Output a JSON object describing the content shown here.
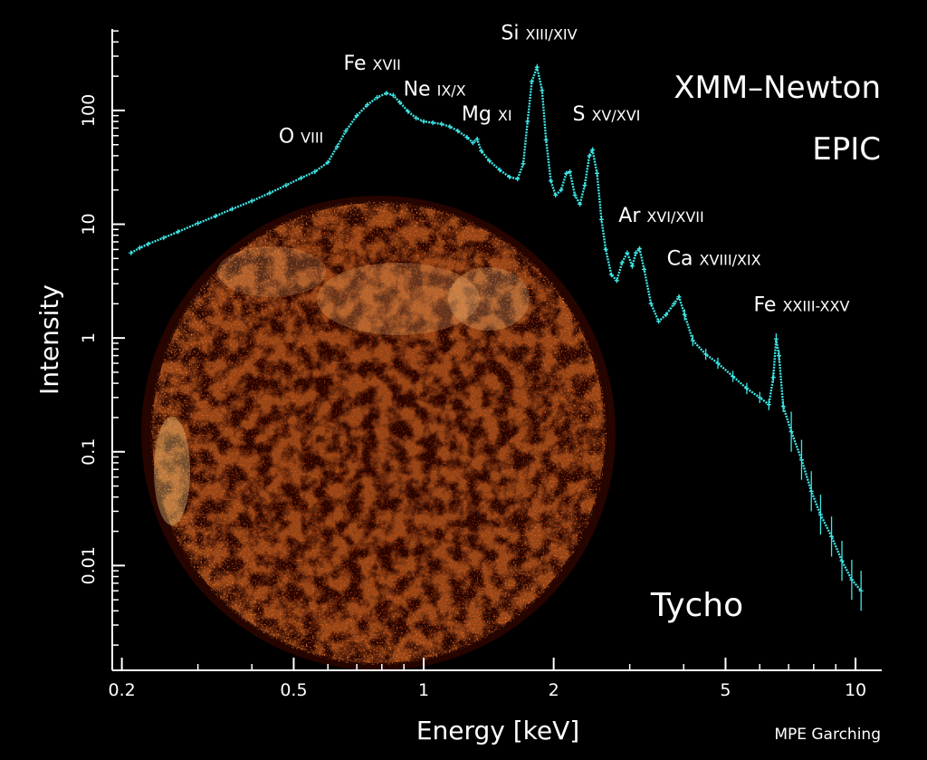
{
  "colors": {
    "background": "#000000",
    "spectrum": "#3fe6e6",
    "axis": "#ffffff",
    "image_bright": "#ffd77a",
    "image_mid": "#e0501a",
    "image_dark": "#5a0b02"
  },
  "image": {
    "description_label": "Tycho",
    "texture": "nebula"
  },
  "labels": {
    "instrument_1": "XMM–Newton",
    "instrument_2": "EPIC",
    "target": "Tycho",
    "credit": "MPE Garching"
  },
  "chart_data": {
    "type": "line",
    "xlabel": "Energy [keV]",
    "ylabel": "Intensity",
    "xscale": "log",
    "yscale": "log",
    "xlim": [
      0.19,
      11.5
    ],
    "ylim": [
      0.0012,
      520
    ],
    "xticks": [
      {
        "value": 0.2,
        "label": "0.2"
      },
      {
        "value": 0.5,
        "label": "0.5"
      },
      {
        "value": 1,
        "label": "1"
      },
      {
        "value": 2,
        "label": "2"
      },
      {
        "value": 5,
        "label": "5"
      },
      {
        "value": 10,
        "label": "10"
      }
    ],
    "yticks": [
      {
        "value": 100,
        "label": "100"
      },
      {
        "value": 10,
        "label": "10"
      },
      {
        "value": 1,
        "label": "1"
      },
      {
        "value": 0.1,
        "label": "0.1"
      },
      {
        "value": 0.01,
        "label": "0.01"
      }
    ],
    "grid": false,
    "series": [
      {
        "color": "#3fe6e6",
        "points": [
          [
            0.21,
            5.6
          ],
          [
            0.22,
            6.2
          ],
          [
            0.23,
            6.7
          ],
          [
            0.25,
            7.6
          ],
          [
            0.27,
            8.6
          ],
          [
            0.3,
            10.2
          ],
          [
            0.33,
            11.8
          ],
          [
            0.36,
            13.6
          ],
          [
            0.4,
            16.0
          ],
          [
            0.44,
            18.8
          ],
          [
            0.48,
            22.0
          ],
          [
            0.52,
            25.5
          ],
          [
            0.56,
            29.0
          ],
          [
            0.6,
            35.0
          ],
          [
            0.63,
            48.0
          ],
          [
            0.66,
            66.0
          ],
          [
            0.7,
            90.0
          ],
          [
            0.74,
            112
          ],
          [
            0.78,
            130
          ],
          [
            0.82,
            142
          ],
          [
            0.85,
            136
          ],
          [
            0.88,
            118
          ],
          [
            0.92,
            98
          ],
          [
            0.96,
            86
          ],
          [
            1.0,
            80
          ],
          [
            1.05,
            78
          ],
          [
            1.1,
            76
          ],
          [
            1.15,
            72
          ],
          [
            1.2,
            66
          ],
          [
            1.26,
            58
          ],
          [
            1.3,
            52
          ],
          [
            1.33,
            56
          ],
          [
            1.36,
            44
          ],
          [
            1.42,
            36
          ],
          [
            1.5,
            30
          ],
          [
            1.58,
            26
          ],
          [
            1.65,
            25
          ],
          [
            1.7,
            34
          ],
          [
            1.74,
            80
          ],
          [
            1.78,
            180
          ],
          [
            1.83,
            240
          ],
          [
            1.88,
            150
          ],
          [
            1.92,
            55
          ],
          [
            1.97,
            24
          ],
          [
            2.02,
            18
          ],
          [
            2.08,
            20
          ],
          [
            2.14,
            28
          ],
          [
            2.18,
            29
          ],
          [
            2.24,
            18
          ],
          [
            2.3,
            15
          ],
          [
            2.36,
            22
          ],
          [
            2.42,
            40
          ],
          [
            2.46,
            45
          ],
          [
            2.52,
            28
          ],
          [
            2.58,
            11
          ],
          [
            2.64,
            6
          ],
          [
            2.72,
            3.6
          ],
          [
            2.8,
            3.2
          ],
          [
            2.88,
            4.6
          ],
          [
            2.96,
            5.6
          ],
          [
            3.04,
            4.3
          ],
          [
            3.1,
            5.6
          ],
          [
            3.16,
            6.1
          ],
          [
            3.24,
            4.0
          ],
          [
            3.36,
            2.0
          ],
          [
            3.5,
            1.4
          ],
          [
            3.64,
            1.6
          ],
          [
            3.8,
            2.0
          ],
          [
            3.9,
            2.3
          ],
          [
            4.02,
            1.6
          ],
          [
            4.2,
            0.95
          ],
          [
            4.5,
            0.72
          ],
          [
            4.8,
            0.6
          ],
          [
            5.2,
            0.46
          ],
          [
            5.6,
            0.36
          ],
          [
            6.0,
            0.3
          ],
          [
            6.3,
            0.26
          ],
          [
            6.45,
            0.45
          ],
          [
            6.55,
            0.98
          ],
          [
            6.65,
            0.7
          ],
          [
            6.8,
            0.25
          ],
          [
            7.1,
            0.15
          ],
          [
            7.5,
            0.085
          ],
          [
            7.9,
            0.045
          ],
          [
            8.3,
            0.028
          ],
          [
            8.8,
            0.018
          ],
          [
            9.3,
            0.011
          ],
          [
            9.8,
            0.0075
          ],
          [
            10.3,
            0.006
          ]
        ]
      }
    ],
    "annotations": [
      {
        "text": "O viii",
        "x": 0.52,
        "y": 52
      },
      {
        "text": "Fe xvii",
        "x": 0.76,
        "y": 228
      },
      {
        "text": "Ne ix/x",
        "x": 1.06,
        "y": 135
      },
      {
        "text": "Mg xi",
        "x": 1.4,
        "y": 82
      },
      {
        "text": "Si xiii/xiv",
        "x": 1.85,
        "y": 420
      },
      {
        "text": "S xv/xvi",
        "x": 2.65,
        "y": 82
      },
      {
        "text": "Ar xvi/xvii",
        "x": 3.55,
        "y": 10.5
      },
      {
        "text": "Ca xviii/xix",
        "x": 4.7,
        "y": 4.4
      },
      {
        "text": "Fe xxiii-xxv",
        "x": 7.5,
        "y": 1.72
      }
    ]
  }
}
